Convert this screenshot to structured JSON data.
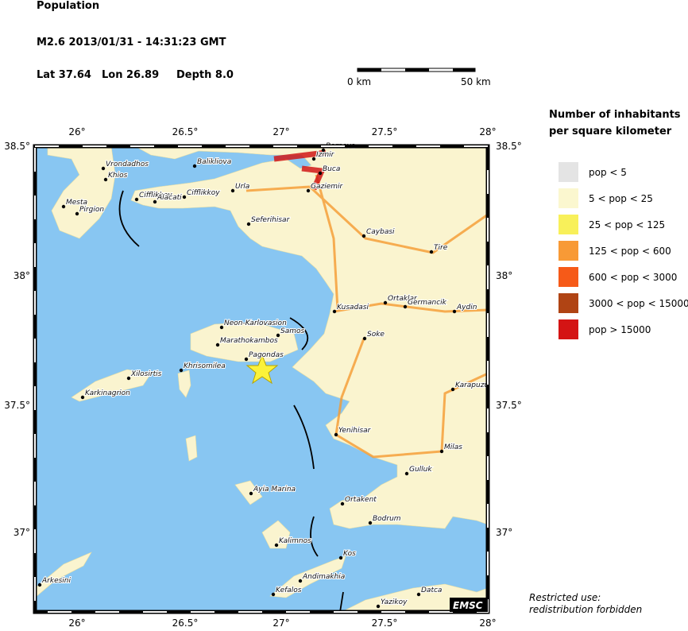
{
  "header": {
    "title": "Population",
    "event": "M2.6  2013/01/31 - 14:31:23 GMT",
    "lat": "Lat 37.64",
    "lon": "Lon 26.89",
    "depth": "Depth  8.0"
  },
  "scale": {
    "start": "0 km",
    "end": "50 km"
  },
  "axes": {
    "lon_ticks": [
      "26°",
      "26.5°",
      "27°",
      "27.5°",
      "28°"
    ],
    "lat_ticks": [
      "38.5°",
      "38°",
      "37.5°",
      "37°"
    ]
  },
  "towns": [
    "Vrondadhos",
    "Khios",
    "Mesta",
    "Pirgion",
    "Cifflikkoy",
    "Alacati",
    "Cifflikkoy",
    "Balikliova",
    "Urla",
    "Bornova",
    "Izmir",
    "Buca",
    "Gaziemir",
    "Seferihisar",
    "Caybasi",
    "Tire",
    "Kusadasi",
    "Ortaklar",
    "Germancik",
    "Aydin",
    "Soke",
    "Neon-Karlovasion",
    "Samos",
    "Marathokambos",
    "Pagondas",
    "Xilosirtis",
    "Karkinagrion",
    "Khrisomilea",
    "Karapuzu",
    "Yenihisar",
    "Milas",
    "Gulluk",
    "Ayia Marina",
    "Ortakent",
    "Bodrum",
    "Kalimnos",
    "Kos",
    "Andimakhia",
    "Kefalos",
    "Arkesini",
    "Yazikoy",
    "Datca"
  ],
  "legend": {
    "title_line1": "Number of inhabitants",
    "title_line2": "per square kilometer",
    "items": [
      {
        "label": "pop < 5",
        "color": "#e4e4e4"
      },
      {
        "label": "5 < pop < 25",
        "color": "#fbf7cf"
      },
      {
        "label": "25 < pop < 125",
        "color": "#f8f05a"
      },
      {
        "label": "125 < pop < 600",
        "color": "#f89a36"
      },
      {
        "label": "600 < pop < 3000",
        "color": "#f65a18"
      },
      {
        "label": "3000 < pop < 15000",
        "color": "#b04414"
      },
      {
        "label": "pop > 15000",
        "color": "#d41414"
      }
    ]
  },
  "footer": {
    "line1": "Restricted use:",
    "line2": "redistribution forbidden",
    "brand": "EMSC"
  }
}
